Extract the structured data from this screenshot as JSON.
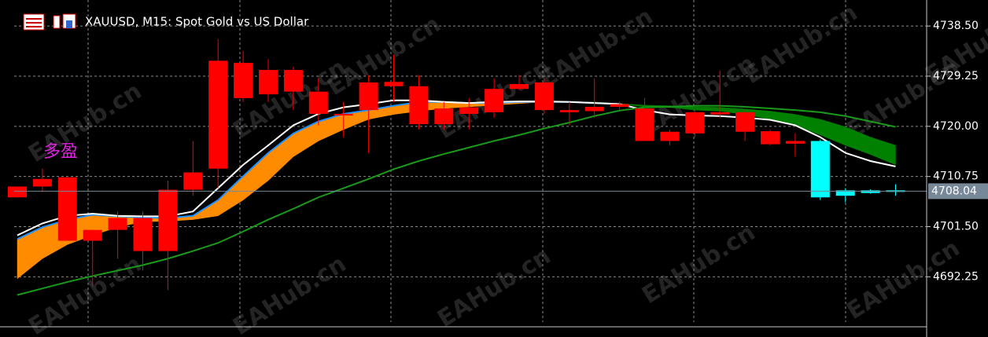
{
  "chart_data": {
    "type": "candlestick",
    "title": "XAUUSD, M15:  Spot Gold vs US Dollar",
    "annotation": "多盈",
    "watermark": "EAHub.cn",
    "current_price": 4708.04,
    "ylim": [
      4683.9,
      4743.3
    ],
    "yticks": [
      {
        "value": 4738.5,
        "label": "4738.50"
      },
      4729.25,
      {
        "value": 4720,
        "label": "4720.00"
      },
      4710.75,
      {
        "value": 4701.5,
        "label": "4701.50"
      },
      4692.25
    ],
    "grid": true,
    "up_color": "#ff0000",
    "down_color": "#00ffff",
    "open": [
      4706.9,
      4708.9,
      4698.9,
      4698.9,
      4700.9,
      4697.0,
      4697.0,
      4708.3,
      4712.2,
      4725.2,
      4725.9,
      4726.4,
      4722.3,
      4722.0,
      4723.0,
      4727.4,
      4720.4,
      4720.4,
      4722.3,
      4722.6,
      4726.9,
      4723.0,
      4722.6,
      4722.8,
      4723.6,
      4717.3,
      4717.3,
      4718.7,
      4722.2,
      4719.0,
      4716.7,
      4716.8,
      4717.3,
      4708.2,
      4708.2,
      4708.2
    ],
    "high": [
      4708.9,
      4712.2,
      4710.6,
      4700.9,
      4704.3,
      4704.3,
      4710.0,
      4717.3,
      4736.1,
      4733.9,
      4732.4,
      4731.0,
      4728.8,
      4724.5,
      4729.5,
      4733.2,
      4729.5,
      4724.5,
      4725.2,
      4728.8,
      4729.5,
      4728.8,
      4724.5,
      4728.8,
      4724.5,
      4725.2,
      4719.4,
      4723.0,
      4730.3,
      4723.0,
      4719.4,
      4718.7,
      4717.6,
      4708.6,
      4708.4,
      4709.3
    ],
    "low": [
      4706.9,
      4707.9,
      4698.9,
      4690.5,
      4695.6,
      4693.4,
      4689.8,
      4707.2,
      4708.6,
      4724.5,
      4724.5,
      4723.0,
      4720.2,
      4718.0,
      4715.1,
      4724.5,
      4719.4,
      4719.4,
      4719.4,
      4721.6,
      4726.7,
      4722.3,
      4720.2,
      4721.6,
      4723.0,
      4717.3,
      4716.5,
      4718.0,
      4721.6,
      4717.3,
      4716.5,
      4714.4,
      4706.4,
      4706.0,
      4707.6,
      4707.2
    ],
    "close": [
      4708.9,
      4710.3,
      4710.6,
      4700.9,
      4703.1,
      4703.1,
      4708.3,
      4711.5,
      4732.1,
      4731.7,
      4730.4,
      4730.4,
      4726.4,
      4722.3,
      4728.1,
      4728.2,
      4727.4,
      4723.3,
      4723.5,
      4726.9,
      4727.8,
      4728.1,
      4723.0,
      4723.6,
      4724.1,
      4723.3,
      4719.0,
      4722.6,
      4722.6,
      4722.6,
      4719.1,
      4717.3,
      4706.9,
      4707.2,
      4707.7,
      4708.0
    ],
    "cloud": {
      "up_color": "#ff8c00",
      "down_color": "#008000",
      "a": [
        4699.2,
        4701.4,
        4702.8,
        4703.7,
        4703.4,
        4703.2,
        4703.1,
        4703.5,
        4706.4,
        4710.8,
        4715.1,
        4718.7,
        4720.9,
        4722.3,
        4723.0,
        4723.8,
        4724.5,
        4724.5,
        4724.3,
        4724.3,
        4724.5,
        4724.5,
        4724.5,
        4724.3,
        4724.1,
        4723.6,
        4723.5,
        4723.0,
        4722.8,
        4722.2,
        4721.3,
        4720.2,
        4718.4,
        4716.5,
        4714.8,
        4712.9
      ],
      "b": [
        4691.9,
        4695.6,
        4698.2,
        4699.9,
        4701.4,
        4702.4,
        4702.5,
        4702.8,
        4703.5,
        4706.4,
        4710.0,
        4714.4,
        4717.3,
        4719.4,
        4721.3,
        4722.2,
        4722.8,
        4723.3,
        4723.6,
        4723.9,
        4724.2,
        4724.5,
        4724.5,
        4724.5,
        4724.2,
        4723.9,
        4723.8,
        4723.6,
        4723.5,
        4723.2,
        4722.8,
        4722.2,
        4721.3,
        4719.9,
        4718.0,
        4716.5
      ]
    },
    "lines": [
      {
        "color": "#1e90ff",
        "values": [
          4699.2,
          4701.4,
          4702.8,
          4703.7,
          4703.4,
          4703.2,
          4703.1,
          4703.5,
          4706.4,
          4710.8,
          4715.1,
          4718.7,
          4720.9,
          4722.3,
          4723.0,
          4723.8,
          4724.5,
          4724.5,
          4724.3,
          4724.3,
          4724.5,
          4724.5,
          4724.5,
          4724.3,
          4724.1
        ]
      },
      {
        "color": "#ffffff",
        "values": [
          4699.9,
          4702.1,
          4703.5,
          4703.9,
          4703.5,
          4703.4,
          4703.4,
          4704.3,
          4708.6,
          4712.9,
          4716.5,
          4720.2,
          4722.3,
          4723.5,
          4724.1,
          4724.8,
          4724.8,
          4724.5,
          4724.3,
          4724.5,
          4724.6,
          4724.6,
          4724.5,
          4724.3,
          4724.1,
          4723.0,
          4722.2,
          4722.0,
          4721.9,
          4721.6,
          4721.2,
          4720.2,
          4718.0,
          4715.1,
          4713.6,
          4712.6
        ]
      },
      {
        "color": "#1a9a1a",
        "values": [
          4688.9,
          4690.1,
          4691.3,
          4692.4,
          4693.4,
          4694.4,
          4695.6,
          4697.0,
          4698.5,
          4700.6,
          4702.8,
          4704.8,
          4706.9,
          4708.6,
          4710.3,
          4712.1,
          4713.6,
          4714.9,
          4716.1,
          4717.3,
          4718.4,
          4719.6,
          4720.7,
          4721.9,
          4722.9,
          4723.5,
          4723.6,
          4723.8,
          4723.8,
          4723.6,
          4723.3,
          4723.0,
          4722.6,
          4721.9,
          4720.9,
          4719.9
        ]
      }
    ]
  }
}
